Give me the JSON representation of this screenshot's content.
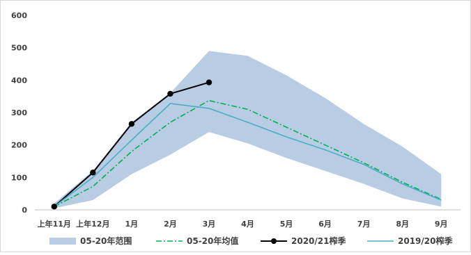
{
  "chart_data": {
    "type": "line",
    "categories": [
      "上年11月",
      "上年12月",
      "1月",
      "2月",
      "3月",
      "4月",
      "5月",
      "6月",
      "7月",
      "8月",
      "9月"
    ],
    "ylim": [
      0,
      600
    ],
    "yticks": [
      0,
      100,
      200,
      300,
      400,
      500,
      600
    ],
    "grid": false,
    "legend_position": "bottom",
    "series": [
      {
        "name": "05-20年范围",
        "kind": "range-band",
        "color": "#b8cce4",
        "lower": [
          5,
          30,
          110,
          170,
          240,
          205,
          160,
          120,
          80,
          35,
          10
        ],
        "upper": [
          20,
          120,
          270,
          360,
          490,
          475,
          415,
          345,
          265,
          195,
          110
        ]
      },
      {
        "name": "05-20年均值",
        "kind": "line",
        "style": "dash-dot",
        "color": "#00b050",
        "values": [
          10,
          72,
          180,
          270,
          337,
          310,
          255,
          200,
          145,
          85,
          32
        ]
      },
      {
        "name": "2020/21榨季",
        "kind": "line-markers",
        "color": "#000000",
        "values": [
          10,
          115,
          265,
          358,
          393,
          null,
          null,
          null,
          null,
          null,
          null
        ]
      },
      {
        "name": "2019/20榨季",
        "kind": "line",
        "color": "#4bacc6",
        "values": [
          10,
          100,
          215,
          328,
          313,
          270,
          225,
          185,
          140,
          80,
          30
        ]
      }
    ]
  }
}
